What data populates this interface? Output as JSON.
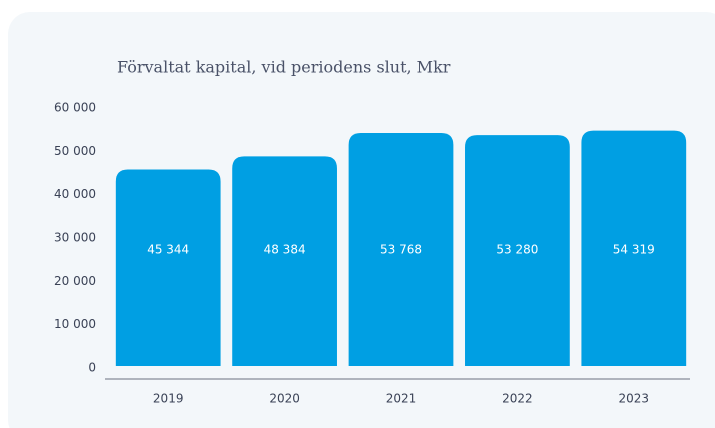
{
  "chart_data": {
    "type": "bar",
    "title": "Förvaltat kapital, vid periodens slut, Mkr",
    "categories": [
      "2019",
      "2020",
      "2021",
      "2022",
      "2023"
    ],
    "values": [
      45344,
      48384,
      53768,
      53280,
      54319
    ],
    "value_labels": [
      "45 344",
      "48 384",
      "53 768",
      "53 280",
      "54 319"
    ],
    "color": "#009fe3",
    "ylim": [
      0,
      60000
    ],
    "yticks": [
      0,
      {
        "value": 10000,
        "label": "10 000"
      },
      {
        "value": 20000,
        "label": "20 000"
      },
      {
        "value": 30000,
        "label": "30 000"
      },
      {
        "value": 40000,
        "label": "40 000"
      },
      {
        "value": 50000,
        "label": "50 000"
      },
      {
        "value": 60000,
        "label": "60 000"
      }
    ],
    "grid": false
  }
}
